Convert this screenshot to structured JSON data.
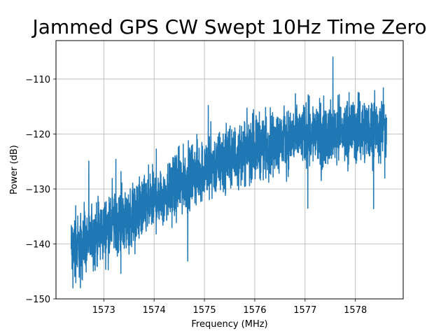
{
  "chart_data": {
    "type": "line",
    "title": "Jammed GPS CW Swept 10Hz Time Zero",
    "xlabel": "Frequency (MHz)",
    "ylabel": "Power (dB)",
    "xlim": [
      1572.05,
      1578.95
    ],
    "ylim": [
      -150,
      -103
    ],
    "xticks": [
      1573,
      1574,
      1575,
      1576,
      1577,
      1578
    ],
    "yticks": [
      -150,
      -140,
      -130,
      -120,
      -110
    ],
    "grid": true,
    "series": [
      {
        "color": "#1f77b4",
        "noise": "dense noisy signal, approx ±5 dB around trend",
        "x": [
          1572.35,
          1572.6,
          1572.85,
          1573.1,
          1573.35,
          1573.6,
          1573.85,
          1574.1,
          1574.35,
          1574.6,
          1574.85,
          1575.1,
          1575.35,
          1575.6,
          1575.85,
          1576.1,
          1576.35,
          1576.6,
          1576.85,
          1577.1,
          1577.35,
          1577.6,
          1577.85,
          1578.1,
          1578.35,
          1578.62
        ],
        "y": [
          -141,
          -140,
          -138.5,
          -137,
          -136,
          -134.5,
          -133,
          -131.5,
          -130,
          -128.5,
          -127,
          -126,
          -125,
          -124,
          -123,
          -122,
          -121.5,
          -121,
          -120.5,
          -120,
          -120,
          -119.5,
          -119.5,
          -119,
          -119,
          -119
        ]
      }
    ]
  }
}
